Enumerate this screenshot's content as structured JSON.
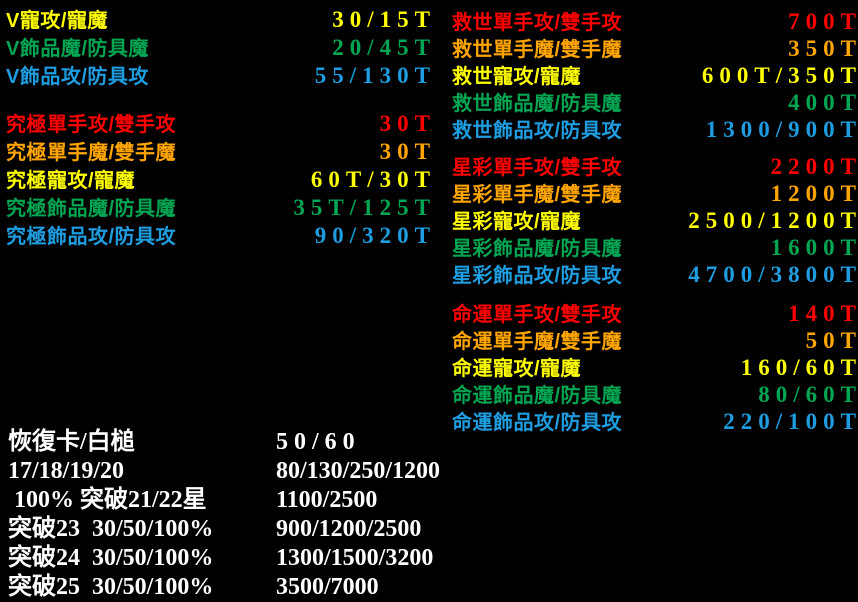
{
  "colors": {
    "background": "#000000",
    "red": "#ff0000",
    "orange": "#ffa500",
    "yellow": "#ffff00",
    "green": "#00a651",
    "cyan": "#1e9de0",
    "white": "#ffffff"
  },
  "blocks": [
    {
      "name": "v",
      "rows": [
        {
          "label": "V寵攻/寵魔",
          "value": "30/15T",
          "color": "yellow"
        },
        {
          "label": "V飾品魔/防具魔",
          "value": "20/45T",
          "color": "green"
        },
        {
          "label": "V飾品攻/防具攻",
          "value": "55/130T",
          "color": "cyan"
        }
      ]
    },
    {
      "name": "ultimate",
      "rows": [
        {
          "label": "究極單手攻/雙手攻",
          "value": "30T",
          "color": "red"
        },
        {
          "label": "究極單手魔/雙手魔",
          "value": "30T",
          "color": "orange"
        },
        {
          "label": "究極寵攻/寵魔",
          "value": "60T/30T",
          "color": "yellow"
        },
        {
          "label": "究極飾品魔/防具魔",
          "value": "35T/125T",
          "color": "green"
        },
        {
          "label": "究極飾品攻/防具攻",
          "value": "90/320T",
          "color": "cyan"
        }
      ]
    },
    {
      "name": "savior",
      "rows": [
        {
          "label": "救世單手攻/雙手攻",
          "value": "700T",
          "color": "red"
        },
        {
          "label": "救世單手魔/雙手魔",
          "value": "350T",
          "color": "orange"
        },
        {
          "label": "救世寵攻/寵魔",
          "value": "600T/350T",
          "color": "yellow"
        },
        {
          "label": "救世飾品魔/防具魔",
          "value": "400T",
          "color": "green"
        },
        {
          "label": "救世飾品攻/防具攻",
          "value": "1300/900T",
          "color": "cyan"
        }
      ]
    },
    {
      "name": "starlight",
      "rows": [
        {
          "label": "星彩單手攻/雙手攻",
          "value": "2200T",
          "color": "red"
        },
        {
          "label": "星彩單手魔/雙手魔",
          "value": "1200T",
          "color": "orange"
        },
        {
          "label": "星彩寵攻/寵魔",
          "value": "2500/1200T",
          "color": "yellow"
        },
        {
          "label": "星彩飾品魔/防具魔",
          "value": "1600T",
          "color": "green"
        },
        {
          "label": "星彩飾品攻/防具攻",
          "value": "4700/3800T",
          "color": "cyan"
        }
      ]
    },
    {
      "name": "destiny",
      "rows": [
        {
          "label": "命運單手攻/雙手攻",
          "value": "140T",
          "color": "red"
        },
        {
          "label": "命運單手魔/雙手魔",
          "value": "50T",
          "color": "orange"
        },
        {
          "label": "命運寵攻/寵魔",
          "value": "160/60T",
          "color": "yellow"
        },
        {
          "label": "命運飾品魔/防具魔",
          "value": "80/60T",
          "color": "green"
        },
        {
          "label": "命運飾品攻/防具攻",
          "value": "220/100T",
          "color": "cyan"
        }
      ]
    }
  ],
  "bottom_rows": [
    {
      "label": "恢復卡/白槌",
      "value": "50/60",
      "spaced": true
    },
    {
      "label": "17/18/19/20",
      "value": "80/130/250/1200"
    },
    {
      "label": " 100% 突破21/22星",
      "value": "1100/2500"
    },
    {
      "label": "突破23  30/50/100%",
      "value": "900/1200/2500"
    },
    {
      "label": "突破24  30/50/100%",
      "value": "1300/1500/3200"
    },
    {
      "label": "突破25  30/50/100%",
      "value": "3500/7000"
    }
  ]
}
